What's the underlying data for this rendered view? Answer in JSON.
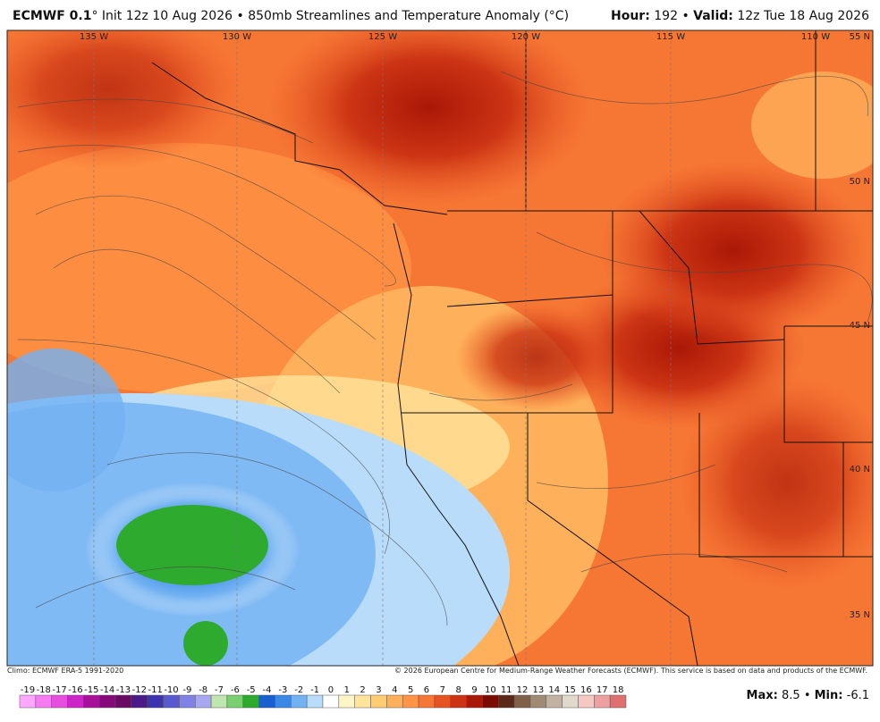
{
  "header": {
    "model": "ECMWF 0.1",
    "run": "° Init 12z 10 Aug 2026",
    "bullet": "•",
    "product": "850mb Streamlines and Temperature Anomaly (°C)",
    "hour_label": "Hour:",
    "hour": "192",
    "valid_label": "Valid:",
    "valid": "12z Tue 18 Aug 2026"
  },
  "map": {
    "lon_labels": [
      "135 W",
      "130 W",
      "125 W",
      "120 W",
      "115 W",
      "110 W"
    ],
    "lat_labels": [
      "55 N",
      "50 N",
      "45 N",
      "40 N",
      "35 N"
    ]
  },
  "footer": {
    "climo": "Climo: ECMWF ERA-5 1991-2020",
    "copyright": "© 2026 European Centre for Medium-Range Weather Forecasts (ECMWF). This service is based on data and products of the ECMWF."
  },
  "colorbar": {
    "labels": [
      -19,
      -18,
      -17,
      -16,
      -15,
      -14,
      -13,
      -12,
      -11,
      -10,
      -9,
      -8,
      -7,
      -6,
      -5,
      -4,
      -3,
      -2,
      -1,
      0,
      1,
      2,
      3,
      4,
      5,
      6,
      7,
      8,
      9,
      10,
      11,
      12,
      13,
      14,
      15,
      16,
      17,
      18
    ],
    "colors": [
      "#ffa8ff",
      "#f57cf0",
      "#e64ee0",
      "#cc25c8",
      "#a8109c",
      "#86087a",
      "#6a0a66",
      "#4a1a8a",
      "#3c34b0",
      "#5a5ad0",
      "#8080e6",
      "#a8a8f2",
      "#bfe6b0",
      "#7ad070",
      "#2eaa2e",
      "#1a5fd0",
      "#3a88e6",
      "#72b2f2",
      "#b8dcfa",
      "#ffffff",
      "#fff6c8",
      "#ffe49a",
      "#ffcc72",
      "#ffb05a",
      "#ff9444",
      "#f67634",
      "#e65424",
      "#cc3414",
      "#aa1806",
      "#7a0c04",
      "#5a2818",
      "#806048",
      "#a08a74",
      "#c2b2a2",
      "#e2d8cc",
      "#f6c8c4",
      "#eca0a0",
      "#e07070"
    ]
  },
  "stats": {
    "max_label": "Max:",
    "max": 8.5,
    "bullet": "•",
    "min_label": "Min:",
    "min": -6.1
  }
}
